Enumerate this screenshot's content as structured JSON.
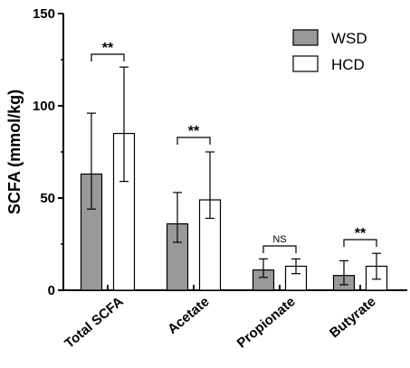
{
  "chart_data": {
    "type": "bar",
    "ylabel": "SCFA (mmol/kg)",
    "ylim": [
      0,
      150
    ],
    "yticks": [
      0,
      50,
      100,
      150
    ],
    "ytick_labels": [
      "0",
      "50",
      "100",
      "150"
    ],
    "categories": [
      "Total SCFA",
      "Acetate",
      "Propionate",
      "Butyrate"
    ],
    "series": [
      {
        "name": "WSD",
        "color": "#999999",
        "values": [
          63,
          36,
          11,
          8
        ],
        "error_low": [
          44,
          26,
          7,
          3
        ],
        "error_high": [
          96,
          53,
          17,
          16
        ]
      },
      {
        "name": "HCD",
        "color": "#ffffff",
        "values": [
          85,
          49,
          13,
          13
        ],
        "error_low": [
          59,
          39,
          9,
          6
        ],
        "error_high": [
          121,
          75,
          17,
          20
        ]
      }
    ],
    "significance": [
      "**",
      "**",
      "NS",
      "**"
    ],
    "legend_position": "top-right",
    "grid": false
  }
}
